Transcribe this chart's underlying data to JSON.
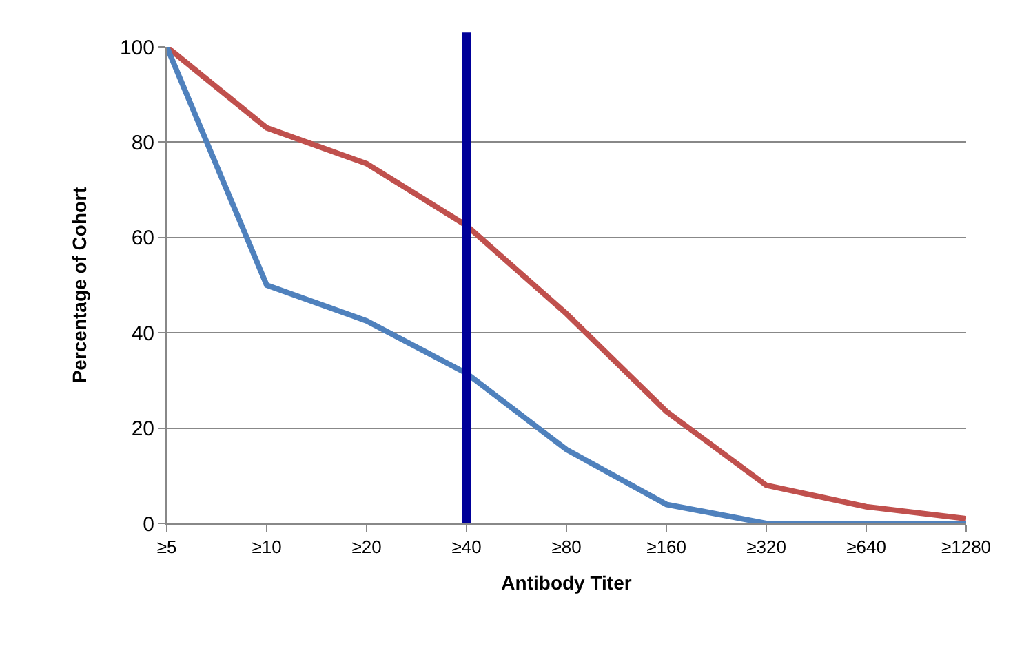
{
  "chart_data": {
    "type": "line",
    "xlabel": "Antibody Titer",
    "ylabel": "Percentage of Cohort",
    "categories": [
      "≥5",
      "≥10",
      "≥20",
      "≥40",
      "≥80",
      "≥160",
      "≥320",
      "≥640",
      "≥1280"
    ],
    "series": [
      {
        "color": "#c0504d",
        "values": [
          100,
          83,
          75.5,
          62.5,
          44,
          23.5,
          8,
          3.5,
          1
        ]
      },
      {
        "color": "#4f81bd",
        "values": [
          100,
          50,
          42.5,
          31.5,
          15.5,
          4,
          0,
          0,
          0
        ]
      }
    ],
    "ylim": [
      0,
      100
    ],
    "yticks": [
      0,
      20,
      40,
      60,
      80,
      100
    ],
    "grid": "y",
    "legend": false,
    "marker": "none",
    "line_style": "solid",
    "ref_lines": [
      {
        "axis": "x",
        "value": "≥40",
        "color": "#000099"
      }
    ]
  }
}
